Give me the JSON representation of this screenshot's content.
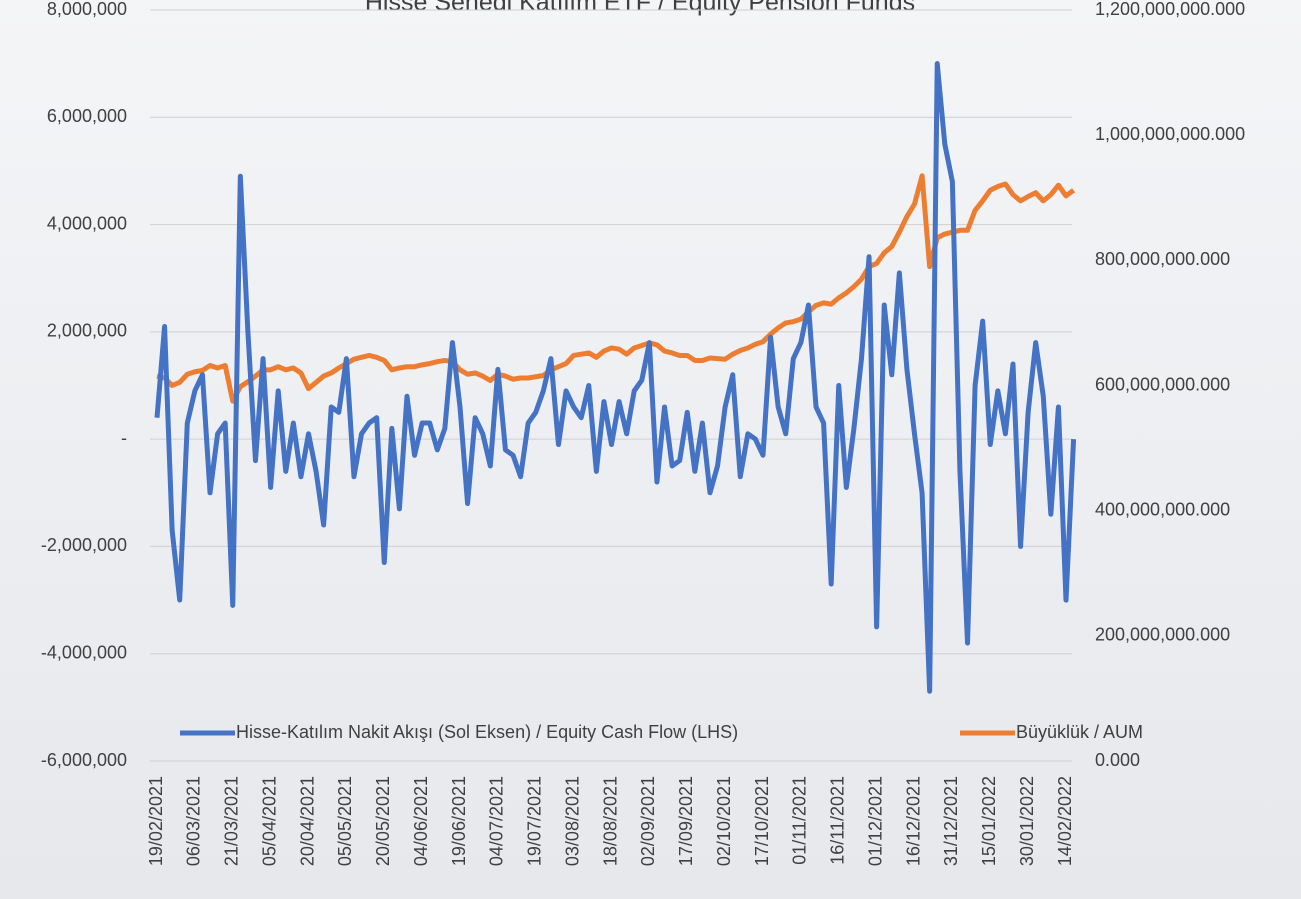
{
  "chart_data": {
    "type": "line",
    "title": "Hisse Senedi Katılım ETF / Equity Pension Funds",
    "categories": [
      "19/02/2021",
      null,
      null,
      null,
      null,
      "06/03/2021",
      null,
      null,
      null,
      null,
      "21/03/2021",
      null,
      null,
      null,
      null,
      "05/04/2021",
      null,
      null,
      null,
      null,
      "20/04/2021",
      null,
      null,
      null,
      null,
      "05/05/2021",
      null,
      null,
      null,
      null,
      "20/05/2021",
      null,
      null,
      null,
      null,
      "04/06/2021",
      null,
      null,
      null,
      null,
      "19/06/2021",
      null,
      null,
      null,
      null,
      "04/07/2021",
      null,
      null,
      null,
      null,
      "19/07/2021",
      null,
      null,
      null,
      null,
      "03/08/2021",
      null,
      null,
      null,
      null,
      "18/08/2021",
      null,
      null,
      null,
      null,
      "02/09/2021",
      null,
      null,
      null,
      null,
      "17/09/2021",
      null,
      null,
      null,
      null,
      "02/10/2021",
      null,
      null,
      null,
      null,
      "17/10/2021",
      null,
      null,
      null,
      null,
      "01/11/2021",
      null,
      null,
      null,
      null,
      "16/11/2021",
      null,
      null,
      null,
      null,
      "01/12/2021",
      null,
      null,
      null,
      null,
      "16/12/2021",
      null,
      null,
      null,
      null,
      "31/12/2021",
      null,
      null,
      null,
      null,
      "15/01/2022",
      null,
      null,
      null,
      null,
      "30/01/2022",
      null,
      null,
      null,
      null,
      "14/02/2022",
      null
    ],
    "series": [
      {
        "name": "Büyüklük / AUM",
        "color": "#ed7d31",
        "axis": "y2",
        "values": [
          615000000,
          612000000,
          600000000,
          605000000,
          618000000,
          622000000,
          624000000,
          632000000,
          628000000,
          632000000,
          575000000,
          598000000,
          606000000,
          615000000,
          625000000,
          625000000,
          630000000,
          625000000,
          628000000,
          620000000,
          595000000,
          605000000,
          615000000,
          620000000,
          628000000,
          635000000,
          642000000,
          645000000,
          648000000,
          645000000,
          640000000,
          625000000,
          628000000,
          630000000,
          630000000,
          633000000,
          635000000,
          638000000,
          640000000,
          638000000,
          625000000,
          618000000,
          620000000,
          615000000,
          608000000,
          618000000,
          615000000,
          610000000,
          612000000,
          612000000,
          614000000,
          616000000,
          625000000,
          630000000,
          635000000,
          648000000,
          650000000,
          652000000,
          645000000,
          655000000,
          660000000,
          658000000,
          650000000,
          660000000,
          664000000,
          668000000,
          665000000,
          655000000,
          652000000,
          648000000,
          648000000,
          640000000,
          640000000,
          644000000,
          643000000,
          642000000,
          650000000,
          656000000,
          660000000,
          666000000,
          670000000,
          682000000,
          692000000,
          700000000,
          702000000,
          706000000,
          718000000,
          728000000,
          732000000,
          730000000,
          740000000,
          748000000,
          758000000,
          770000000,
          790000000,
          795000000,
          812000000,
          822000000,
          845000000,
          870000000,
          890000000,
          935000000,
          790000000,
          836000000,
          842000000,
          845000000,
          848000000,
          848000000,
          880000000,
          895000000,
          912000000,
          918000000,
          922000000,
          905000000,
          895000000,
          902000000,
          908000000,
          895000000,
          905000000,
          920000000,
          903000000,
          912000000
        ]
      },
      {
        "name": "Hisse-Katılım Nakit Akışı (Sol Eksen) / Equity Cash Flow (LHS)",
        "color": "#4472c4",
        "values": [
          400000,
          2100000,
          -1700000,
          -3000000,
          300000,
          900000,
          1200000,
          -1000000,
          100000,
          300000,
          -3100000,
          4900000,
          2000000,
          -400000,
          1500000,
          -900000,
          900000,
          -600000,
          300000,
          -700000,
          100000,
          -600000,
          -1600000,
          600000,
          500000,
          1500000,
          -700000,
          100000,
          300000,
          400000,
          -2300000,
          200000,
          -1300000,
          800000,
          -300000,
          300000,
          300000,
          -200000,
          200000,
          1800000,
          600000,
          -1200000,
          400000,
          100000,
          -500000,
          1300000,
          -200000,
          -300000,
          -700000,
          300000,
          500000,
          900000,
          1500000,
          -100000,
          900000,
          600000,
          400000,
          1000000,
          -600000,
          700000,
          -100000,
          700000,
          100000,
          900000,
          1100000,
          1800000,
          -800000,
          600000,
          -500000,
          -400000,
          500000,
          -600000,
          300000,
          -1000000,
          -500000,
          600000,
          1200000,
          -700000,
          100000,
          0,
          -300000,
          1900000,
          600000,
          100000,
          1500000,
          1800000,
          2500000,
          600000,
          300000,
          -2700000,
          1000000,
          -900000,
          200000,
          1500000,
          3400000,
          -3500000,
          2500000,
          1200000,
          3100000,
          1300000,
          100000,
          -1000000,
          -4700000,
          7000000,
          5500000,
          4800000,
          -600000,
          -3800000,
          1000000,
          2200000,
          -100000,
          900000,
          100000,
          1400000,
          -2000000,
          500000,
          1800000,
          800000,
          -1400000,
          600000,
          -3000000,
          0
        ]
      }
    ],
    "ylim": [
      -6000000,
      8000000
    ],
    "yticks": [
      {
        "value": -6000000,
        "label": "-6,000,000"
      },
      {
        "value": -4000000,
        "label": "-4,000,000"
      },
      {
        "value": -2000000,
        "label": "-2,000,000"
      },
      {
        "value": 0,
        "label": "-"
      },
      {
        "value": 2000000,
        "label": "2,000,000"
      },
      {
        "value": 4000000,
        "label": "4,000,000"
      },
      {
        "value": 6000000,
        "label": "6,000,000"
      },
      {
        "value": 8000000,
        "label": "8,000,000"
      }
    ],
    "y2lim": [
      0,
      1200000000
    ],
    "y2ticks": [
      {
        "value": 0,
        "label": "0.000"
      },
      {
        "value": 200000000,
        "label": "200,000,000.000"
      },
      {
        "value": 400000000,
        "label": "400,000,000.000"
      },
      {
        "value": 600000000,
        "label": "600,000,000.000"
      },
      {
        "value": 800000000,
        "label": "800,000,000.000"
      },
      {
        "value": 1000000000,
        "label": "1,000,000,000.000"
      },
      {
        "value": 1200000000,
        "label": "1,200,000,000.000"
      }
    ],
    "grid": true,
    "legend": "bottom"
  }
}
